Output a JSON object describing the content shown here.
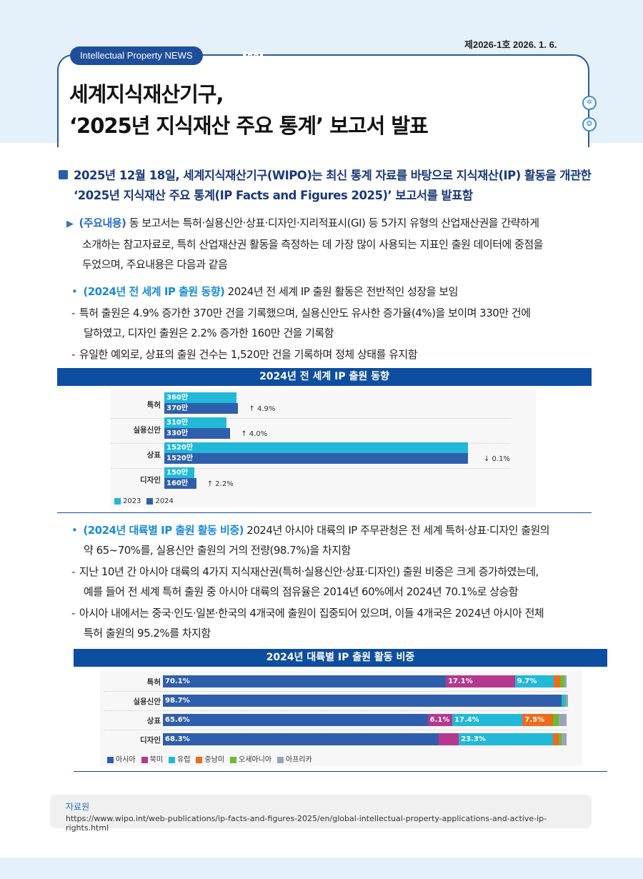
{
  "header": {
    "newsletter": "Intellectual Property NEWS",
    "issue_date": "제2026-1호 2026. 1. 6.",
    "title_lines": [
      "세계지식재산기구,",
      "‘2025년 지식재산 주요 통계’ 보고서 발표"
    ]
  },
  "intro": {
    "lines": [
      "2025년 12월 18일, 세계지식재산기구(WIPO)는 최신 통계 자료를 바탕으로 지식재산(IP) 활동을 개관한",
      "‘2025년 지식재산 주요 통계(IP Facts and Figures 2025)’ 보고서를 발표함"
    ]
  },
  "summary": {
    "label": "(주요내용)",
    "lines": [
      " 동 보고서는 특허·실용신안·상표·디자인·지리적표시(GI) 등 5가지 유형의 산업재산권을 간략하게",
      "소개하는 참고자료로, 특히 산업재산권 활동을 측정하는 데 가장 많이 사용되는 지표인 출원 데이터에 중점을",
      "두었으며, 주요내용은 다음과 같음"
    ]
  },
  "section1": {
    "label": "(2024년 전 세계 IP 출원 동향)",
    "text": " 2024년 전 세계 IP 출원 활동은 전반적인 성장을 보임",
    "dash1": [
      "특허 출원은 4.9% 증가한 370만 건을 기록했으며, 실용신안도 유사한 증가율(4%)을 보이며 330만 건에",
      "달하였고, 디자인 출원은 2.2% 증가한 160만 건을 기록함"
    ],
    "dash2": "유일한 예외로, 상표의 출원 건수는 1,520만 건을 기록하며 정체 상태를 유지함"
  },
  "section2": {
    "label": "(2024년 대륙별 IP 출원 활동 비중)",
    "text": " 2024년 아시아 대륙의 IP 주무관청은 전 세계 특허·상표·디자인 출원의",
    "text2": "약 65~70%를, 실용신안 출원의 거의 전량(98.7%)을 차지함",
    "dash1": [
      "지난 10년 간 아시아 대륙의 4가지 지식재산권(특허·실용신안·상표·디자인) 출원 비중은 크게 증가하였는데,",
      "예를 들어 전 세계 특허 출원 중 아시아 대륙의 점유율은 2014년 60%에서 2024년 70.1%로 상승함"
    ],
    "dash2": [
      "아시아 내에서는 중국·인도·일본·한국의 4개국에 출원이 집중되어 있으며, 이들 4개국은 2024년 아시아 전체",
      "특허 출원의 95.2%를 차지함"
    ]
  },
  "chart_data": [
    {
      "type": "bar",
      "orientation": "horizontal",
      "title": "2024년 전 세계 IP 출원 동향",
      "categories": [
        "특허",
        "실용신안",
        "상표",
        "디자인"
      ],
      "series": [
        {
          "name": "2023",
          "values": [
            360,
            310,
            1520,
            150
          ],
          "labels": [
            "360만",
            "310만",
            "1520만",
            "150만"
          ],
          "color": "#22b8d8"
        },
        {
          "name": "2024",
          "values": [
            370,
            330,
            1520,
            160
          ],
          "labels": [
            "370만",
            "330만",
            "1520만",
            "160만"
          ],
          "color": "#2f5fac"
        }
      ],
      "changes": [
        "↑ 4.9%",
        "↑ 4.0%",
        "↓ 0.1%",
        "↑ 2.2%"
      ],
      "unit": "만 건",
      "legend": "bottom-left"
    },
    {
      "type": "bar",
      "orientation": "horizontal-stacked-100",
      "title": "2024년 대륙별 IP 출원 활동 비중",
      "categories": [
        "특허",
        "실용신안",
        "상표",
        "디자인"
      ],
      "series": [
        {
          "name": "아시아",
          "color": "#2f5fac",
          "values": [
            70.1,
            98.7,
            65.6,
            68.3
          ],
          "labels": [
            "70.1%",
            "98.7%",
            "65.6%",
            "68.3%"
          ]
        },
        {
          "name": "북미",
          "color": "#b5388e",
          "values": [
            17.1,
            0.0,
            6.1,
            5.0
          ],
          "labels": [
            "17.1%",
            "",
            "6.1%",
            ""
          ]
        },
        {
          "name": "유럽",
          "color": "#22b8d8",
          "values": [
            9.7,
            0.9,
            17.4,
            23.3
          ],
          "labels": [
            "9.7%",
            "",
            "17.4%",
            "23.3%"
          ]
        },
        {
          "name": "중남미",
          "color": "#ee6a1e",
          "values": [
            1.5,
            0.1,
            7.5,
            1.4
          ],
          "labels": [
            "",
            "",
            "7.5%",
            ""
          ]
        },
        {
          "name": "오세아니아",
          "color": "#6cbb2f",
          "values": [
            1.0,
            0.1,
            1.5,
            0.8
          ],
          "labels": [
            "",
            "",
            "",
            ""
          ]
        },
        {
          "name": "아프리카",
          "color": "#9aa3bd",
          "values": [
            0.6,
            0.2,
            1.9,
            1.2
          ],
          "labels": [
            "",
            "",
            "",
            ""
          ]
        }
      ],
      "legend": "bottom-left"
    }
  ],
  "source": {
    "label": "자료원",
    "url": "https://www.wipo.int/web-publications/ip-facts-and-figures-2025/en/global-intellectual-property-applications-and-active-ip-rights.html"
  }
}
